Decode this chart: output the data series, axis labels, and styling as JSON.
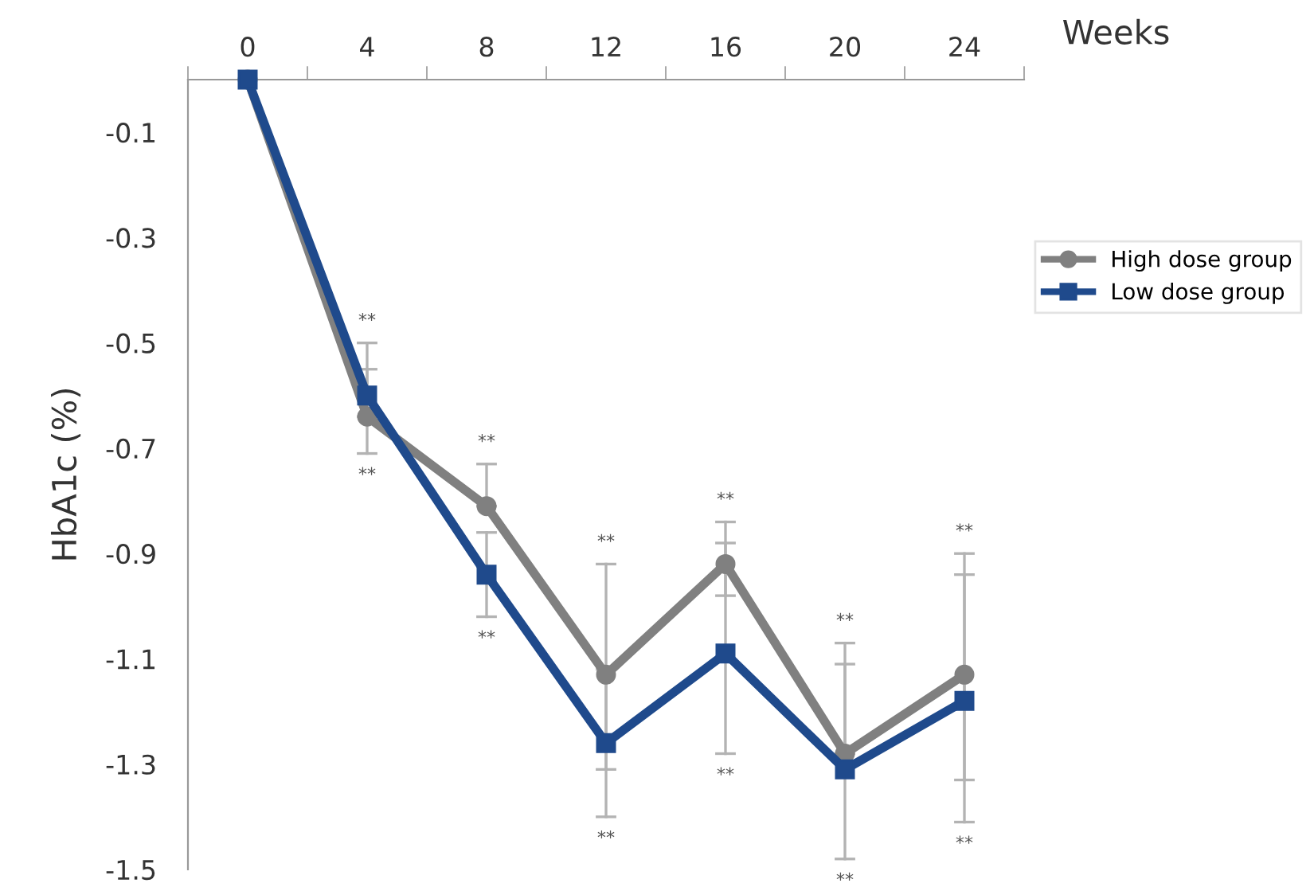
{
  "chart_data": {
    "type": "line",
    "xlabel": "Weeks",
    "ylabel": "HbA1c (%)",
    "x": [
      0,
      4,
      8,
      12,
      16,
      20,
      24
    ],
    "xlim": [
      -2,
      26
    ],
    "xticks": [
      {
        "value": -2,
        "label": null
      },
      0,
      {
        "value": 2,
        "label": null
      },
      4,
      {
        "value": 6,
        "label": null
      },
      8,
      {
        "value": 10,
        "label": null
      },
      12,
      {
        "value": 14,
        "label": null
      },
      16,
      {
        "value": 18,
        "label": null
      },
      20,
      {
        "value": 22,
        "label": null
      },
      24,
      {
        "value": 26,
        "label": null
      }
    ],
    "ylim": [
      -1.5,
      0
    ],
    "yticks": [
      -0.1,
      -0.3,
      -0.5,
      -0.7,
      -0.9,
      -1.1,
      -1.3,
      -1.5
    ],
    "series": [
      {
        "name": "High dose group",
        "color": "#808080",
        "marker": "circle",
        "values": [
          0,
          -0.64,
          -0.81,
          -1.13,
          -0.92,
          -1.28,
          -1.13
        ],
        "errors": [
          null,
          [
            -0.64,
            -0.55
          ],
          [
            -0.81,
            -0.73
          ],
          [
            -1.31,
            -0.92
          ],
          [
            -0.98,
            -0.84
          ],
          [
            -1.28,
            -1.07
          ],
          [
            -1.33,
            -0.9
          ]
        ]
      },
      {
        "name": "Low dose group",
        "color": "#1f4a8c",
        "marker": "square",
        "values": [
          0,
          -0.6,
          -0.94,
          -1.26,
          -1.09,
          -1.31,
          -1.18
        ],
        "errors": [
          null,
          [
            -0.71,
            -0.5
          ],
          [
            -1.02,
            -0.86
          ],
          [
            -1.4,
            -1.12
          ],
          [
            -1.28,
            -0.88
          ],
          [
            -1.48,
            -1.11
          ],
          [
            -1.41,
            -0.94
          ]
        ]
      }
    ],
    "annotations": [
      {
        "text": "**",
        "x": 4,
        "y": -0.5
      },
      {
        "text": "**",
        "x": 4,
        "y": -0.71
      },
      {
        "text": "**",
        "x": 8,
        "y": -0.73
      },
      {
        "text": "**",
        "x": 8,
        "y": -1.02
      },
      {
        "text": "**",
        "x": 12,
        "y": -0.92
      },
      {
        "text": "**",
        "x": 12,
        "y": -1.4
      },
      {
        "text": "**",
        "x": 16,
        "y": -0.84
      },
      {
        "text": "**",
        "x": 16,
        "y": -1.28
      },
      {
        "text": "**",
        "x": 20,
        "y": -1.07
      },
      {
        "text": "**",
        "x": 20,
        "y": -1.48
      },
      {
        "text": "**",
        "x": 24,
        "y": -0.9
      },
      {
        "text": "**",
        "x": 24,
        "y": -1.41
      }
    ],
    "grid": false,
    "legend": "right"
  }
}
